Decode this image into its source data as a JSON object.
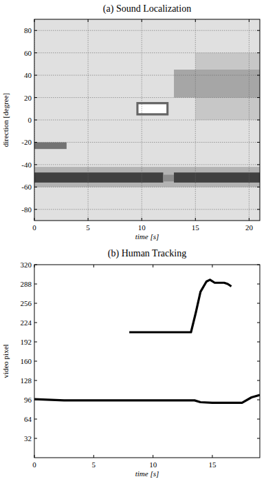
{
  "chart_data": [
    {
      "type": "heatmap",
      "title": "(a) Sound Localization",
      "x_label": "time [s]",
      "y_label": "direction [degree]",
      "xlim": [
        0,
        21
      ],
      "ylim": [
        -90,
        90
      ],
      "xticks": [
        0,
        5,
        10,
        15,
        20
      ],
      "yticks": [
        -80,
        -60,
        -40,
        -20,
        0,
        20,
        40,
        60,
        80
      ],
      "grid": true,
      "cells": [
        {
          "t": [
            0,
            21
          ],
          "direction": [
            -90,
            90
          ],
          "intensity": 0.12
        },
        {
          "t": [
            15,
            21
          ],
          "direction": [
            0,
            60
          ],
          "intensity": 0.22
        },
        {
          "t": [
            13,
            21
          ],
          "direction": [
            20,
            45
          ],
          "intensity": 0.35
        },
        {
          "t": [
            0,
            21
          ],
          "direction": [
            -60,
            -42
          ],
          "intensity": 0.3
        },
        {
          "t": [
            0,
            12
          ],
          "direction": [
            -56,
            -47
          ],
          "intensity": 0.75
        },
        {
          "t": [
            12,
            13
          ],
          "direction": [
            -55,
            -49
          ],
          "intensity": 0.45
        },
        {
          "t": [
            13,
            21
          ],
          "direction": [
            -56,
            -47
          ],
          "intensity": 0.75
        },
        {
          "t": [
            0,
            3
          ],
          "direction": [
            -26,
            -20
          ],
          "intensity": 0.55
        },
        {
          "t": [
            9.5,
            12.5
          ],
          "direction": [
            4,
            16
          ],
          "intensity": 0.6
        },
        {
          "t": [
            9.7,
            12.3
          ],
          "direction": [
            6,
            14
          ],
          "intensity": 0
        }
      ]
    },
    {
      "type": "line",
      "title": "(b) Human Tracking",
      "x_label": "time [s]",
      "y_label": "video pixel",
      "xlim": [
        0,
        19
      ],
      "ylim": [
        0,
        320
      ],
      "xticks": [
        0,
        5,
        10,
        15
      ],
      "yticks": [
        32,
        64,
        96,
        128,
        160,
        192,
        224,
        256,
        288,
        320
      ],
      "series": [
        {
          "color": "#000000",
          "x": [
            0,
            2.5,
            5,
            10,
            13.5,
            14,
            15,
            16,
            17.5,
            18.3,
            19
          ],
          "values": [
            97,
            95,
            95,
            95,
            95,
            92,
            91,
            91,
            91,
            100,
            104
          ]
        },
        {
          "color": "#000000",
          "x": [
            8,
            13.2,
            13.6,
            14,
            14.5,
            14.8,
            15.2,
            16,
            16.3,
            16.6
          ],
          "values": [
            208,
            208,
            240,
            275,
            292,
            295,
            290,
            290,
            288,
            284
          ]
        }
      ]
    }
  ]
}
